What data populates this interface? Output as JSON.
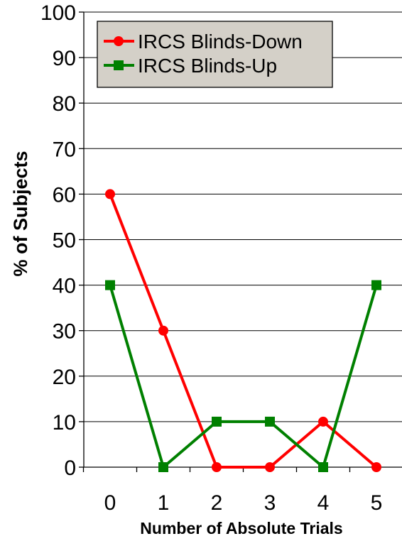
{
  "chart_data": {
    "type": "line",
    "title": "",
    "xlabel": "Number of Absolute Trials",
    "ylabel": "% of Subjects",
    "x": [
      0,
      1,
      2,
      3,
      4,
      5
    ],
    "x_tick_labels": [
      "0",
      "1",
      "2",
      "3",
      "4",
      "5"
    ],
    "ylim": [
      0,
      100
    ],
    "y_ticks": [
      0,
      10,
      20,
      30,
      40,
      50,
      60,
      70,
      80,
      90,
      100
    ],
    "y_tick_labels": [
      "0",
      "10",
      "20",
      "30",
      "40",
      "50",
      "60",
      "70",
      "80",
      "90",
      "100"
    ],
    "grid": "horizontal",
    "legend_position": "top-left",
    "series": [
      {
        "name": "IRCS Blinds-Down",
        "values": [
          60,
          30,
          0,
          0,
          10,
          0
        ],
        "color": "#ff0000",
        "marker": "circle"
      },
      {
        "name": "IRCS Blinds-Up",
        "values": [
          40,
          0,
          10,
          10,
          0,
          40
        ],
        "color": "#008000",
        "marker": "square"
      }
    ],
    "legend_background": "#d4d0c8"
  }
}
